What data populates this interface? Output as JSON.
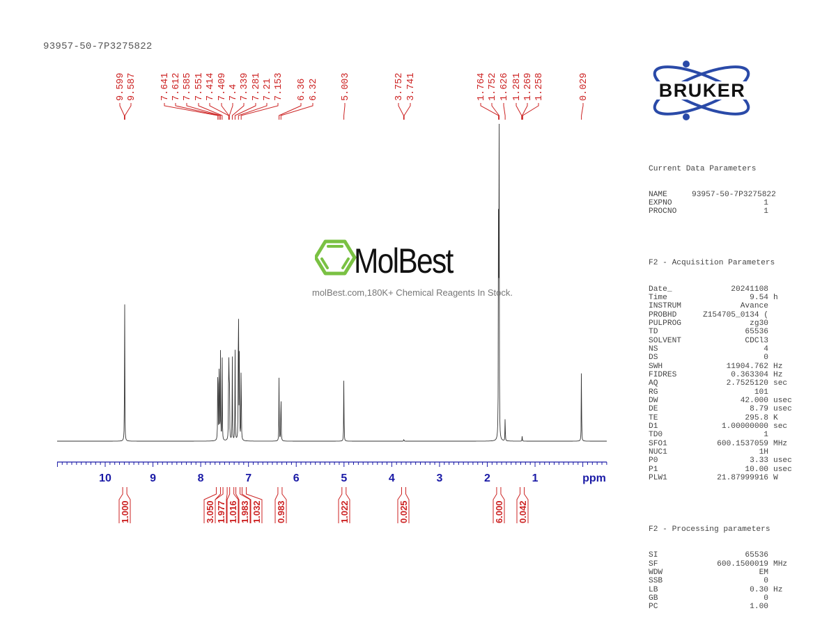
{
  "header": {
    "sample_name": "93957-50-7P3275822"
  },
  "logos": {
    "bruker": "BRUKER",
    "watermark_brand": "MolBest",
    "watermark_tagline": "molBest.com,180K+ Chemical Reagents In Stock."
  },
  "colors": {
    "peak_labels": "#cc2222",
    "axis": "#1a1aa6",
    "spectrum": "#333333",
    "params_text": "#444444",
    "watermark_green": "#7ac143",
    "bruker_blue": "#2a4aa8"
  },
  "params": {
    "current": {
      "title": "Current Data Parameters",
      "rows": [
        {
          "k": "NAME",
          "v": "93957-50-7P3275822",
          "u": ""
        },
        {
          "k": "EXPNO",
          "v": "1",
          "u": ""
        },
        {
          "k": "PROCNO",
          "v": "1",
          "u": ""
        }
      ]
    },
    "acquisition": {
      "title": "F2 - Acquisition Parameters",
      "rows": [
        {
          "k": "Date_",
          "v": "20241108",
          "u": ""
        },
        {
          "k": "Time",
          "v": "9.54",
          "u": "h"
        },
        {
          "k": "INSTRUM",
          "v": "Avance",
          "u": ""
        },
        {
          "k": "PROBHD",
          "v": "Z154705_0134 (",
          "u": ""
        },
        {
          "k": "PULPROG",
          "v": "zg30",
          "u": ""
        },
        {
          "k": "TD",
          "v": "65536",
          "u": ""
        },
        {
          "k": "SOLVENT",
          "v": "CDCl3",
          "u": ""
        },
        {
          "k": "NS",
          "v": "4",
          "u": ""
        },
        {
          "k": "DS",
          "v": "0",
          "u": ""
        },
        {
          "k": "SWH",
          "v": "11904.762",
          "u": "Hz"
        },
        {
          "k": "FIDRES",
          "v": "0.363304",
          "u": "Hz"
        },
        {
          "k": "AQ",
          "v": "2.7525120",
          "u": "sec"
        },
        {
          "k": "RG",
          "v": "101",
          "u": ""
        },
        {
          "k": "DW",
          "v": "42.000",
          "u": "usec"
        },
        {
          "k": "DE",
          "v": "8.79",
          "u": "usec"
        },
        {
          "k": "TE",
          "v": "295.8",
          "u": "K"
        },
        {
          "k": "D1",
          "v": "1.00000000",
          "u": "sec"
        },
        {
          "k": "TD0",
          "v": "1",
          "u": ""
        },
        {
          "k": "SFO1",
          "v": "600.1537059",
          "u": "MHz"
        },
        {
          "k": "NUC1",
          "v": "1H",
          "u": ""
        },
        {
          "k": "P0",
          "v": "3.33",
          "u": "usec"
        },
        {
          "k": "P1",
          "v": "10.00",
          "u": "usec"
        },
        {
          "k": "PLW1",
          "v": "21.87999916",
          "u": "W"
        }
      ]
    },
    "processing": {
      "title": "F2 - Processing parameters",
      "rows": [
        {
          "k": "SI",
          "v": "65536",
          "u": ""
        },
        {
          "k": "SF",
          "v": "600.1500019",
          "u": "MHz"
        },
        {
          "k": "WDW",
          "v": "EM",
          "u": ""
        },
        {
          "k": "SSB",
          "v": "0",
          "u": ""
        },
        {
          "k": "LB",
          "v": "0.30",
          "u": "Hz"
        },
        {
          "k": "GB",
          "v": "0",
          "u": ""
        },
        {
          "k": "PC",
          "v": "1.00",
          "u": ""
        }
      ]
    }
  },
  "chart_data": {
    "type": "line",
    "title": "93957-50-7P3275822",
    "xlabel": "ppm",
    "ylabel": "",
    "xlim": [
      11.0,
      -0.5
    ],
    "x_reversed": true,
    "grid": false,
    "x_ticks": [
      10,
      9,
      8,
      7,
      6,
      5,
      4,
      3,
      2,
      1
    ],
    "x_tick_labels": [
      "10",
      "9",
      "8",
      "7",
      "6",
      "5",
      "4",
      "3",
      "2",
      "1",
      "ppm"
    ],
    "peak_labels": [
      9.599,
      9.587,
      7.641,
      7.612,
      7.585,
      7.551,
      7.414,
      7.409,
      7.4,
      7.339,
      7.281,
      7.21,
      7.153,
      6.36,
      6.32,
      5.003,
      3.752,
      3.741,
      1.764,
      1.752,
      1.626,
      1.281,
      1.269,
      1.258,
      0.029
    ],
    "peaks": [
      {
        "ppm": 9.593,
        "height": 0.5
      },
      {
        "ppm": 7.641,
        "height": 0.38
      },
      {
        "ppm": 7.612,
        "height": 0.4
      },
      {
        "ppm": 7.585,
        "height": 0.3
      },
      {
        "ppm": 7.551,
        "height": 0.3
      },
      {
        "ppm": 7.414,
        "height": 0.4
      },
      {
        "ppm": 7.4,
        "height": 0.33
      },
      {
        "ppm": 7.339,
        "height": 0.28
      },
      {
        "ppm": 7.281,
        "height": 0.32
      },
      {
        "ppm": 7.21,
        "height": 0.67
      },
      {
        "ppm": 7.19,
        "height": 0.36
      },
      {
        "ppm": 7.153,
        "height": 0.34
      },
      {
        "ppm": 6.36,
        "height": 0.21
      },
      {
        "ppm": 6.32,
        "height": 0.21
      },
      {
        "ppm": 5.003,
        "height": 0.22
      },
      {
        "ppm": 3.747,
        "height": 0.008
      },
      {
        "ppm": 1.764,
        "height": 0.98
      },
      {
        "ppm": 1.752,
        "height": 0.95
      },
      {
        "ppm": 1.626,
        "height": 0.085
      },
      {
        "ppm": 1.269,
        "height": 0.018
      },
      {
        "ppm": 0.029,
        "height": 0.26
      }
    ],
    "integrals": [
      {
        "ppm": 9.59,
        "value": "1.000"
      },
      {
        "ppm": 7.63,
        "value": "3.050"
      },
      {
        "ppm": 7.49,
        "value": "1.977"
      },
      {
        "ppm": 7.35,
        "value": "1.016"
      },
      {
        "ppm": 7.22,
        "value": "1.983"
      },
      {
        "ppm": 7.09,
        "value": "1.032"
      },
      {
        "ppm": 6.34,
        "value": "0.983"
      },
      {
        "ppm": 5.0,
        "value": "1.022"
      },
      {
        "ppm": 3.75,
        "value": "0.025"
      },
      {
        "ppm": 1.76,
        "value": "6.000"
      },
      {
        "ppm": 1.27,
        "value": "0.042"
      }
    ]
  }
}
